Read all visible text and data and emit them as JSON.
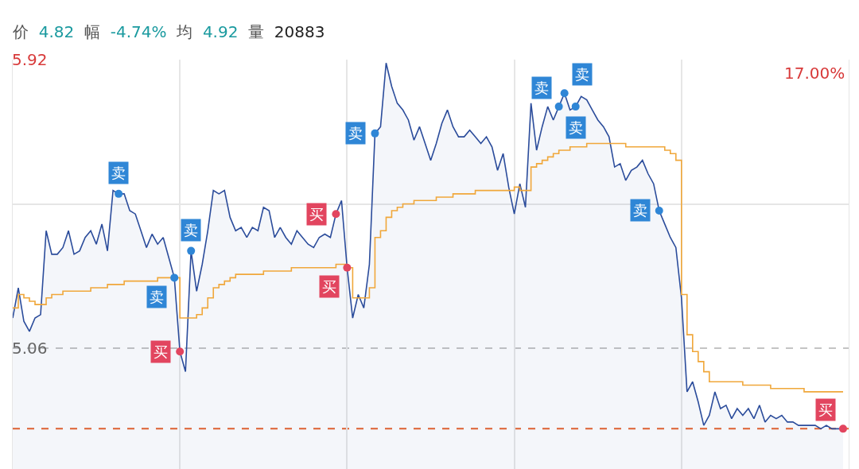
{
  "chart_data": {
    "type": "area",
    "title": "价 4.82 幅 -4.74% 均 4.92 量 20883",
    "categories": [
      null,
      null,
      null,
      null,
      null,
      null,
      null,
      null,
      null,
      null,
      null,
      null,
      null,
      null,
      null,
      null,
      null,
      null,
      null,
      null,
      null,
      null,
      null,
      null,
      null,
      null,
      null,
      null,
      null,
      null,
      null,
      null,
      null,
      null,
      null,
      null,
      null,
      null,
      null,
      null,
      null,
      null,
      null,
      null,
      null,
      null,
      null,
      null,
      null,
      null,
      null,
      null,
      null,
      null,
      null,
      null,
      null,
      null,
      null,
      null,
      null,
      null,
      null,
      null,
      null,
      null,
      null,
      null,
      null,
      null,
      null,
      null,
      null,
      null,
      null,
      null,
      null,
      null,
      null,
      null,
      null,
      null,
      null,
      null,
      null,
      null,
      null,
      null,
      null,
      null,
      null,
      null,
      null,
      null,
      null,
      null,
      null,
      null,
      null,
      null,
      null,
      null,
      null,
      null,
      null,
      null,
      null,
      null,
      null,
      null,
      null,
      null,
      null,
      null,
      null,
      null,
      null,
      null,
      null,
      null,
      null,
      null,
      null,
      null,
      null,
      null,
      null,
      null,
      null,
      null,
      null,
      null,
      null,
      null,
      null,
      null,
      null,
      null,
      null,
      null,
      null,
      null,
      null,
      null,
      null,
      null,
      null,
      null,
      null,
      null
    ],
    "series": [
      {
        "color": "#2b4c9b",
        "marker": "none",
        "values": [
          5.15,
          5.24,
          5.14,
          5.11,
          5.15,
          5.16,
          5.41,
          5.34,
          5.34,
          5.36,
          5.41,
          5.34,
          5.35,
          5.39,
          5.41,
          5.37,
          5.43,
          5.35,
          5.53,
          5.52,
          5.52,
          5.47,
          5.46,
          5.41,
          5.36,
          5.4,
          5.37,
          5.39,
          5.33,
          5.27,
          5.05,
          4.99,
          5.35,
          5.23,
          5.31,
          5.41,
          5.53,
          5.52,
          5.53,
          5.45,
          5.41,
          5.42,
          5.39,
          5.42,
          5.41,
          5.48,
          5.47,
          5.39,
          5.42,
          5.39,
          5.37,
          5.41,
          5.39,
          5.37,
          5.36,
          5.39,
          5.4,
          5.39,
          5.46,
          5.5,
          5.3,
          5.15,
          5.22,
          5.18,
          5.31,
          5.7,
          5.72,
          5.91,
          5.84,
          5.79,
          5.77,
          5.74,
          5.68,
          5.72,
          5.67,
          5.62,
          5.67,
          5.73,
          5.77,
          5.72,
          5.69,
          5.69,
          5.71,
          5.69,
          5.67,
          5.69,
          5.66,
          5.59,
          5.64,
          5.54,
          5.46,
          5.55,
          5.48,
          5.79,
          5.65,
          5.72,
          5.78,
          5.74,
          5.78,
          5.82,
          5.77,
          5.78,
          5.81,
          5.8,
          5.77,
          5.74,
          5.72,
          5.69,
          5.6,
          5.61,
          5.56,
          5.59,
          5.6,
          5.62,
          5.58,
          5.55,
          5.47,
          5.43,
          5.39,
          5.36,
          5.21,
          4.93,
          4.96,
          4.9,
          4.83,
          4.86,
          4.93,
          4.88,
          4.89,
          4.85,
          4.88,
          4.86,
          4.88,
          4.85,
          4.89,
          4.84,
          4.86,
          4.85,
          4.86,
          4.84,
          4.84,
          4.83,
          4.83,
          4.83,
          4.83,
          4.82,
          4.83,
          4.82,
          4.82,
          4.82
        ]
      },
      {
        "type": "step",
        "color": "#f0a73a",
        "marker": "none",
        "values": [
          5.18,
          5.22,
          5.21,
          5.2,
          5.19,
          5.19,
          5.21,
          5.22,
          5.22,
          5.23,
          5.23,
          5.23,
          5.23,
          5.23,
          5.24,
          5.24,
          5.24,
          5.25,
          5.25,
          5.25,
          5.26,
          5.26,
          5.26,
          5.26,
          5.26,
          5.26,
          5.27,
          5.27,
          5.27,
          5.27,
          5.15,
          5.15,
          5.15,
          5.16,
          5.18,
          5.21,
          5.24,
          5.25,
          5.26,
          5.27,
          5.28,
          5.28,
          5.28,
          5.28,
          5.28,
          5.29,
          5.29,
          5.29,
          5.29,
          5.29,
          5.3,
          5.3,
          5.3,
          5.3,
          5.3,
          5.3,
          5.3,
          5.3,
          5.31,
          5.31,
          5.3,
          5.21,
          5.21,
          5.21,
          5.24,
          5.39,
          5.41,
          5.45,
          5.47,
          5.48,
          5.49,
          5.49,
          5.5,
          5.5,
          5.5,
          5.5,
          5.51,
          5.51,
          5.51,
          5.52,
          5.52,
          5.52,
          5.52,
          5.53,
          5.53,
          5.53,
          5.53,
          5.53,
          5.53,
          5.53,
          5.54,
          5.53,
          5.53,
          5.6,
          5.61,
          5.62,
          5.63,
          5.64,
          5.65,
          5.65,
          5.66,
          5.66,
          5.66,
          5.67,
          5.67,
          5.67,
          5.67,
          5.67,
          5.67,
          5.67,
          5.66,
          5.66,
          5.66,
          5.66,
          5.66,
          5.66,
          5.66,
          5.65,
          5.64,
          5.62,
          5.22,
          5.1,
          5.05,
          5.02,
          4.99,
          4.96,
          4.96,
          4.96,
          4.96,
          4.96,
          4.96,
          4.95,
          4.95,
          4.95,
          4.95,
          4.95,
          4.94,
          4.94,
          4.94,
          4.94,
          4.94,
          4.94,
          4.93,
          4.93,
          4.93,
          4.93,
          4.93,
          4.93,
          4.93,
          4.93
        ]
      },
      {
        "type": "scatter",
        "name": "买",
        "color": "#e2455f",
        "marker": "circle",
        "values": [
          null,
          null,
          null,
          null,
          null,
          null,
          null,
          null,
          null,
          null,
          null,
          null,
          null,
          null,
          null,
          null,
          null,
          null,
          null,
          null,
          null,
          null,
          null,
          null,
          null,
          null,
          null,
          null,
          null,
          null,
          5.05,
          null,
          null,
          null,
          null,
          null,
          null,
          null,
          null,
          null,
          null,
          null,
          null,
          null,
          null,
          null,
          null,
          null,
          null,
          null,
          null,
          null,
          null,
          null,
          null,
          null,
          null,
          null,
          5.46,
          null,
          5.3,
          null,
          null,
          null,
          null,
          null,
          null,
          null,
          null,
          null,
          null,
          null,
          null,
          null,
          null,
          null,
          null,
          null,
          null,
          null,
          null,
          null,
          null,
          null,
          null,
          null,
          null,
          null,
          null,
          null,
          null,
          null,
          null,
          null,
          null,
          null,
          null,
          null,
          null,
          null,
          null,
          null,
          null,
          null,
          null,
          null,
          null,
          null,
          null,
          null,
          null,
          null,
          null,
          null,
          null,
          null,
          null,
          null,
          null,
          null,
          null,
          null,
          null,
          null,
          null,
          null,
          null,
          null,
          null,
          null,
          null,
          null,
          null,
          null,
          null,
          null,
          null,
          null,
          null,
          null,
          null,
          null,
          null,
          null,
          null,
          null,
          null,
          null,
          null,
          4.82
        ]
      },
      {
        "type": "scatter",
        "name": "卖",
        "color": "#2f86d6",
        "marker": "circle",
        "values": [
          null,
          null,
          null,
          null,
          null,
          null,
          null,
          null,
          null,
          null,
          null,
          null,
          null,
          null,
          null,
          null,
          null,
          null,
          null,
          5.52,
          null,
          null,
          null,
          null,
          null,
          null,
          null,
          null,
          null,
          5.27,
          null,
          null,
          5.35,
          null,
          null,
          null,
          null,
          null,
          null,
          null,
          null,
          null,
          null,
          null,
          null,
          null,
          null,
          null,
          null,
          null,
          null,
          null,
          null,
          null,
          null,
          null,
          null,
          null,
          null,
          null,
          null,
          null,
          null,
          null,
          null,
          5.7,
          null,
          null,
          null,
          null,
          null,
          null,
          null,
          null,
          null,
          null,
          null,
          null,
          null,
          null,
          null,
          null,
          null,
          null,
          null,
          null,
          null,
          null,
          null,
          null,
          null,
          null,
          null,
          null,
          null,
          null,
          null,
          null,
          5.78,
          5.82,
          null,
          5.78,
          null,
          null,
          null,
          null,
          null,
          null,
          null,
          null,
          null,
          null,
          null,
          null,
          null,
          null,
          5.47,
          null,
          null,
          null,
          null,
          null,
          null,
          null,
          null,
          null,
          null,
          null,
          null,
          null,
          null,
          null,
          null,
          null,
          null,
          null,
          null,
          null,
          null,
          null,
          null,
          null,
          null,
          null,
          null,
          null,
          null,
          null,
          null,
          null
        ]
      }
    ],
    "ylim": [
      4.7,
      5.92
    ],
    "yticks": [
      5.06,
      {
        "value": 5.49,
        "label": null
      },
      5.92
    ],
    "grid": true,
    "ref_lines": [
      {
        "axis": "y",
        "value": 5.06,
        "color": "#c4c4c4",
        "line_style": "dashed"
      },
      {
        "axis": "y",
        "value": 4.82,
        "color": "#e8622c",
        "line_style": "dashed"
      }
    ],
    "annotations": [
      "17.00%"
    ]
  }
}
